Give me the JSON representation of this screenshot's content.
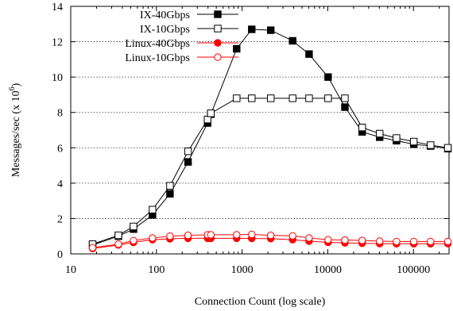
{
  "chart_data": {
    "type": "line",
    "xlabel": "Connection Count (log scale)",
    "ylabel": "Messages/sec (x 10",
    "ylabel_exp": "6",
    "ylabel_close": ")",
    "xscale": "log",
    "xlim": [
      10,
      260000
    ],
    "ylim": [
      0,
      14
    ],
    "grid": "y-dotted",
    "legend": "top-left",
    "x_ticks": [
      {
        "value": 10,
        "label": "10"
      },
      {
        "value": 100,
        "label": "100"
      },
      {
        "value": 1000,
        "label": "1000"
      },
      {
        "value": 10000,
        "label": "10000"
      },
      {
        "value": 100000,
        "label": "100000"
      }
    ],
    "y_ticks": [
      {
        "value": 0,
        "label": "0"
      },
      {
        "value": 2,
        "label": "2"
      },
      {
        "value": 4,
        "label": "4"
      },
      {
        "value": 6,
        "label": "6"
      },
      {
        "value": 8,
        "label": "8"
      },
      {
        "value": 10,
        "label": "10"
      },
      {
        "value": 12,
        "label": "12"
      },
      {
        "value": 14,
        "label": "14"
      }
    ],
    "x": [
      18,
      36,
      54,
      90,
      144,
      234,
      396,
      432,
      864,
      1296,
      2160,
      3888,
      6048,
      10080,
      15840,
      25200,
      40320,
      63360,
      100800,
      158400,
      252000
    ],
    "series": [
      {
        "name": "IX-40Gbps",
        "color": "#000000",
        "marker": "square-filled",
        "values": [
          0.5,
          1.0,
          1.4,
          2.2,
          3.4,
          5.2,
          7.4,
          7.9,
          11.6,
          12.7,
          12.65,
          12.05,
          11.3,
          10.0,
          8.3,
          6.9,
          6.6,
          6.4,
          6.2,
          6.1,
          5.95
        ]
      },
      {
        "name": "IX-10Gbps",
        "color": "#000000",
        "marker": "square-open",
        "values": [
          0.55,
          1.05,
          1.55,
          2.5,
          3.85,
          5.8,
          7.6,
          7.95,
          8.8,
          8.8,
          8.8,
          8.8,
          8.8,
          8.8,
          8.8,
          7.15,
          6.8,
          6.55,
          6.35,
          6.15,
          6.0
        ]
      },
      {
        "name": "Linux-40Gbps",
        "color": "#ff0000",
        "marker": "circle-filled",
        "values": [
          0.3,
          0.5,
          0.65,
          0.8,
          0.85,
          0.88,
          0.88,
          0.88,
          0.88,
          0.87,
          0.86,
          0.8,
          0.72,
          0.65,
          0.62,
          0.6,
          0.58,
          0.57,
          0.57,
          0.57,
          0.58
        ]
      },
      {
        "name": "Linux-10Gbps",
        "color": "#ff0000",
        "marker": "circle-open",
        "values": [
          0.35,
          0.55,
          0.75,
          0.9,
          1.0,
          1.05,
          1.08,
          1.08,
          1.08,
          1.1,
          1.05,
          1.02,
          0.9,
          0.8,
          0.78,
          0.76,
          0.72,
          0.7,
          0.7,
          0.7,
          0.7
        ]
      }
    ]
  }
}
